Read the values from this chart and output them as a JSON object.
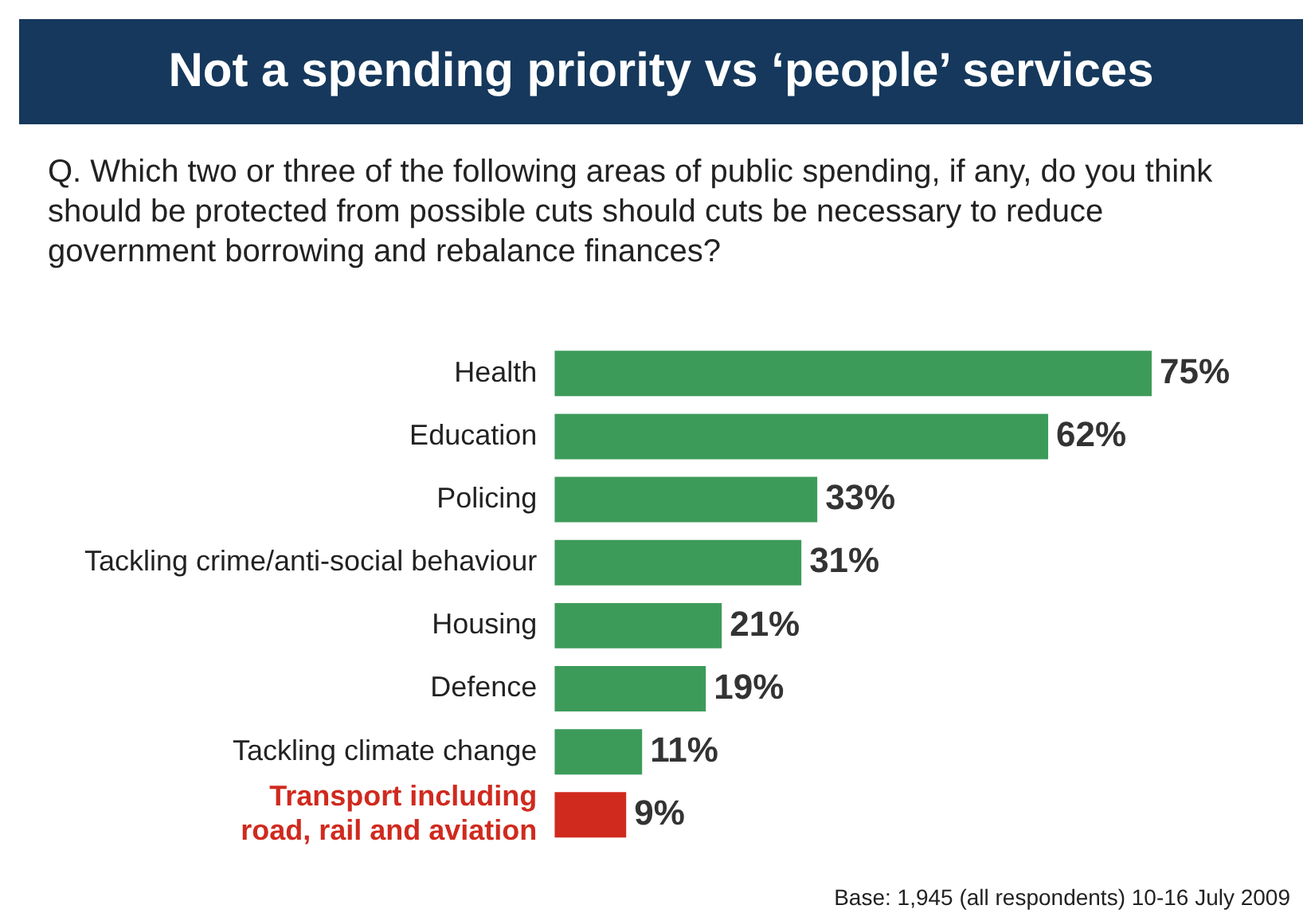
{
  "chart_data": {
    "type": "bar",
    "orientation": "horizontal",
    "title": "Not a spending priority vs ‘people’ services",
    "subtitle": "Q. Which two or three of the following areas of public spending, if any, do you think should be protected from possible cuts should cuts be necessary to reduce government borrowing and rebalance finances?",
    "categories": [
      "Health",
      "Education",
      "Policing",
      "Tackling crime/anti-social behaviour",
      "Housing",
      "Defence",
      "Tackling climate change",
      "Transport including road, rail and aviation"
    ],
    "values": [
      75,
      62,
      33,
      31,
      21,
      19,
      11,
      9
    ],
    "colors": [
      "#3d9b5a",
      "#3d9b5a",
      "#3d9b5a",
      "#3d9b5a",
      "#3d9b5a",
      "#3d9b5a",
      "#3d9b5a",
      "#d02a1e"
    ],
    "value_labels": [
      "75%",
      "62%",
      "33%",
      "31%",
      "21%",
      "19%",
      "11%",
      "9%"
    ],
    "annotations": [
      "Base: 1,945 (all respondents) 10-16 July 2009"
    ]
  }
}
